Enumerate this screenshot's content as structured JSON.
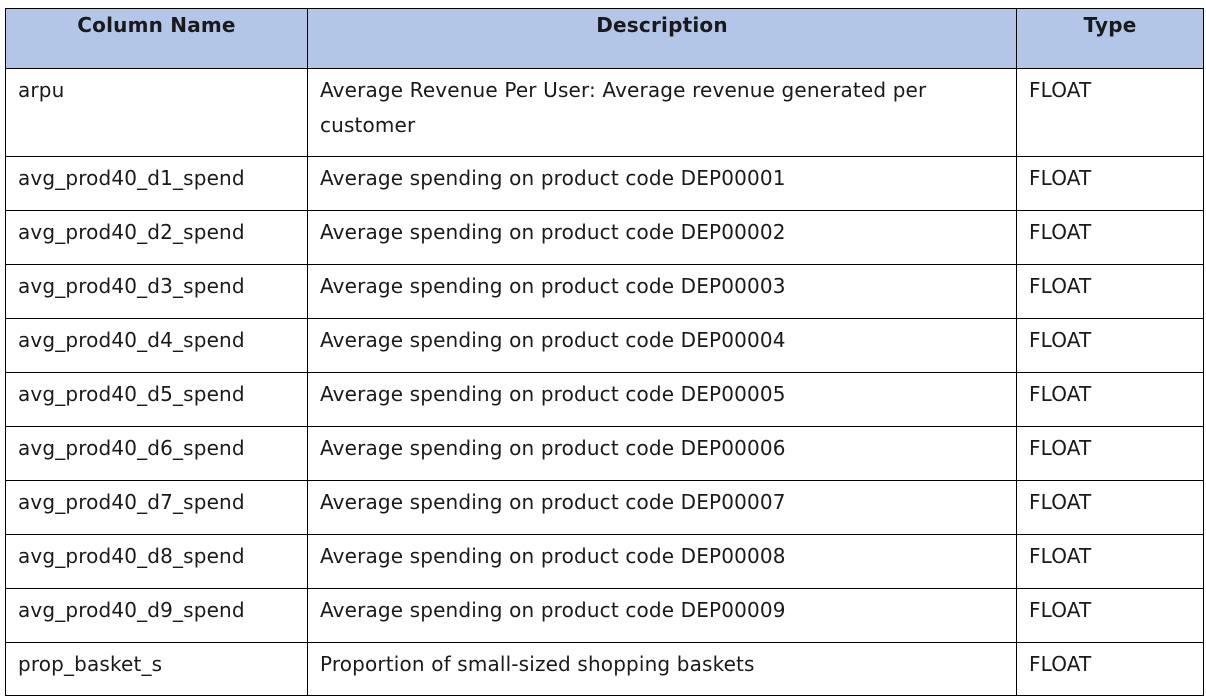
{
  "table": {
    "headers": [
      "Column Name",
      "Description",
      "Type"
    ],
    "rows": [
      [
        "arpu",
        "Average Revenue Per User: Average revenue generated per customer",
        "FLOAT"
      ],
      [
        "avg_prod40_d1_spend",
        "Average spending on product code DEP00001",
        "FLOAT"
      ],
      [
        "avg_prod40_d2_spend",
        "Average spending on product code DEP00002",
        "FLOAT"
      ],
      [
        "avg_prod40_d3_spend",
        "Average spending on product code DEP00003",
        "FLOAT"
      ],
      [
        "avg_prod40_d4_spend",
        "Average spending on product code DEP00004",
        "FLOAT"
      ],
      [
        "avg_prod40_d5_spend",
        "Average spending on product code DEP00005",
        "FLOAT"
      ],
      [
        "avg_prod40_d6_spend",
        "Average spending on product code DEP00006",
        "FLOAT"
      ],
      [
        "avg_prod40_d7_spend",
        "Average spending on product code DEP00007",
        "FLOAT"
      ],
      [
        "avg_prod40_d8_spend",
        "Average spending on product code DEP00008",
        "FLOAT"
      ],
      [
        "avg_prod40_d9_spend",
        "Average spending on product code DEP00009",
        "FLOAT"
      ],
      [
        "prop_basket_s",
        "Proportion of small-sized shopping baskets",
        "FLOAT"
      ]
    ]
  },
  "colors": {
    "header_background": "#b4c6e7",
    "border": "#000000",
    "text": "#1a1a1a"
  }
}
